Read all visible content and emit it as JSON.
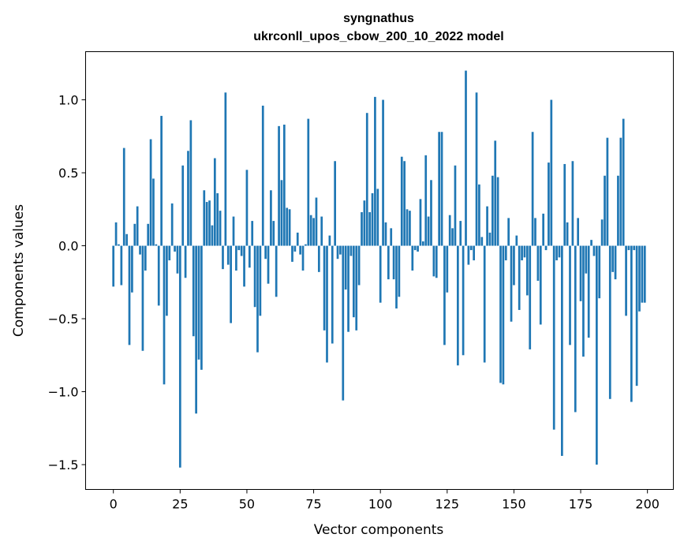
{
  "chart_data": {
    "type": "bar",
    "title": "syngnathus",
    "subtitle": "ukrconll_upos_cbow_200_10_2022 model",
    "xlabel": "Vector components",
    "ylabel": "Components values",
    "xlim": [
      -10.4,
      209.7
    ],
    "ylim": [
      -1.67,
      1.33
    ],
    "grid": false,
    "color": "#1f77b4",
    "xticks": [
      0,
      25,
      50,
      75,
      100,
      125,
      150,
      175,
      200
    ],
    "xtick_labels": [
      "0",
      "25",
      "50",
      "75",
      "100",
      "125",
      "150",
      "175",
      "200"
    ],
    "yticks": [
      1.0,
      0.5,
      0.0,
      -0.5,
      -1.0,
      -1.5
    ],
    "ytick_labels": [
      "1.0",
      "0.5",
      "0.0",
      "−0.5",
      "−1.0",
      "−1.5"
    ],
    "values": [
      -0.28,
      0.16,
      0.01,
      -0.27,
      0.67,
      0.08,
      -0.68,
      -0.32,
      0.15,
      0.27,
      -0.06,
      -0.72,
      -0.17,
      0.15,
      0.73,
      0.46,
      0.01,
      -0.41,
      0.89,
      -0.95,
      -0.48,
      -0.1,
      0.29,
      -0.04,
      -0.19,
      -1.52,
      0.55,
      -0.22,
      0.65,
      0.86,
      -0.62,
      -1.15,
      -0.78,
      -0.85,
      0.38,
      0.3,
      0.31,
      0.14,
      0.6,
      0.36,
      0.24,
      -0.16,
      1.05,
      -0.13,
      -0.53,
      0.2,
      -0.17,
      -0.03,
      -0.07,
      -0.28,
      0.52,
      -0.15,
      0.17,
      -0.42,
      -0.73,
      -0.48,
      0.96,
      -0.09,
      -0.26,
      0.38,
      0.17,
      -0.35,
      0.82,
      0.45,
      0.83,
      0.26,
      0.25,
      -0.11,
      -0.04,
      0.09,
      -0.06,
      -0.17,
      0.01,
      0.87,
      0.21,
      0.19,
      0.33,
      -0.18,
      0.2,
      -0.58,
      -0.8,
      0.07,
      -0.67,
      0.58,
      -0.09,
      -0.06,
      -1.06,
      -0.3,
      -0.59,
      -0.07,
      -0.49,
      -0.58,
      -0.27,
      0.23,
      0.31,
      0.91,
      0.23,
      0.36,
      1.02,
      0.39,
      -0.39,
      1.0,
      0.16,
      -0.23,
      0.12,
      -0.23,
      -0.43,
      -0.35,
      0.61,
      0.58,
      0.25,
      0.24,
      -0.17,
      -0.03,
      -0.04,
      0.32,
      0.03,
      0.62,
      0.2,
      0.45,
      -0.21,
      -0.22,
      0.78,
      0.78,
      -0.68,
      -0.32,
      0.21,
      0.12,
      0.55,
      -0.82,
      0.17,
      -0.75,
      1.2,
      -0.13,
      -0.03,
      -0.1,
      1.05,
      0.42,
      0.06,
      -0.8,
      0.27,
      0.09,
      0.48,
      0.72,
      0.47,
      -0.94,
      -0.95,
      -0.1,
      0.19,
      -0.52,
      -0.27,
      0.07,
      -0.44,
      -0.1,
      -0.08,
      -0.34,
      -0.71,
      0.78,
      0.19,
      -0.24,
      -0.54,
      0.22,
      -0.03,
      0.57,
      1.0,
      -1.26,
      -0.1,
      -0.08,
      -1.44,
      0.56,
      0.16,
      -0.68,
      0.58,
      -1.14,
      0.19,
      -0.38,
      -0.76,
      -0.19,
      -0.63,
      0.04,
      -0.07,
      -1.5,
      -0.36,
      0.18,
      0.48,
      0.74,
      -1.05,
      -0.18,
      -0.23,
      0.48,
      0.74,
      0.87,
      -0.48,
      -0.03,
      -1.07,
      -0.03,
      -0.96,
      -0.45,
      -0.39,
      -0.39
    ]
  }
}
